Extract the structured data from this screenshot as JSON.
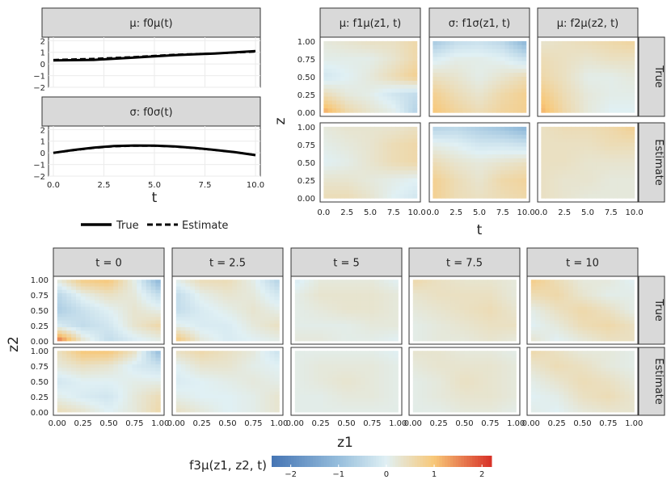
{
  "figure": {
    "colors": {
      "strip_fill": "#d9d9d9",
      "panel_border": "#333333",
      "grid": "#ebebeb",
      "low": "#4575b4",
      "mid": "#e0f0f4",
      "high": "#d73027"
    }
  },
  "chart_data": [
    {
      "type": "line",
      "id": "f0",
      "panels": [
        {
          "strip": "μ: f0μ(t)",
          "ylim": [
            -2,
            2.3
          ],
          "series": [
            {
              "name": "True",
              "x": [
                0,
                2,
                4,
                6,
                8,
                10
              ],
              "y": [
                0.3,
                0.35,
                0.55,
                0.75,
                0.9,
                1.1
              ]
            },
            {
              "name": "Estimate",
              "x": [
                0,
                2,
                4,
                6,
                8,
                10
              ],
              "y": [
                0.35,
                0.45,
                0.6,
                0.8,
                0.9,
                1.05
              ]
            }
          ]
        },
        {
          "strip": "σ: f0σ(t)",
          "ylim": [
            -2,
            2.3
          ],
          "series": [
            {
              "name": "True",
              "x": [
                0,
                1,
                2,
                3,
                4,
                5,
                6,
                7,
                8,
                9,
                10
              ],
              "y": [
                0.0,
                0.25,
                0.45,
                0.58,
                0.63,
                0.62,
                0.55,
                0.42,
                0.25,
                0.05,
                -0.2
              ]
            },
            {
              "name": "Estimate",
              "x": [
                0,
                1,
                2,
                3,
                4,
                5,
                6,
                7,
                8,
                9,
                10
              ],
              "y": [
                0.0,
                0.22,
                0.42,
                0.55,
                0.6,
                0.6,
                0.53,
                0.4,
                0.23,
                0.05,
                -0.18
              ]
            }
          ]
        }
      ],
      "xlabel": "t",
      "xticks": [
        "0.0",
        "2.5",
        "5.0",
        "7.5",
        "10.0"
      ],
      "yticks": [
        "2",
        "1",
        "0",
        "−1",
        "−2"
      ],
      "legend": {
        "placement": "bottom",
        "items": [
          "True",
          "Estimate"
        ]
      }
    },
    {
      "type": "heatmap",
      "id": "f1f2",
      "columns": [
        "μ: f1μ(z1, t)",
        "σ: f1σ(z1, t)",
        "μ: f2μ(z2, t)"
      ],
      "rows": [
        "True",
        "Estimate"
      ],
      "xlabel": "t",
      "ylabel": "z",
      "xticks": [
        "0.0",
        "2.5",
        "5.0",
        "7.5",
        "10.0"
      ],
      "yticks": [
        "1.00",
        "0.75",
        "0.50",
        "0.25",
        "0.00"
      ],
      "grids": [
        [
          [
            [
              0.2,
              0.3,
              0.4,
              0.4,
              0.6
            ],
            [
              0.1,
              0.1,
              0.1,
              0.3,
              0.6
            ],
            [
              -0.2,
              0,
              0.2,
              0.5,
              0.8
            ],
            [
              0.5,
              0.2,
              0.1,
              -0.2,
              -0.4
            ],
            [
              1.3,
              0.6,
              0.3,
              0.1,
              -0.6
            ]
          ],
          [
            [
              -0.8,
              -0.4,
              -0.3,
              -0.5,
              -1.2
            ],
            [
              -0.1,
              0.1,
              0.1,
              0,
              -0.3
            ],
            [
              0.4,
              0.3,
              0.1,
              0.3,
              0.5
            ],
            [
              0.8,
              0.5,
              0.3,
              0.6,
              0.8
            ],
            [
              1,
              0.7,
              0.5,
              0.7,
              0.8
            ]
          ],
          [
            [
              0.3,
              0.4,
              0.5,
              0.6,
              0.7
            ],
            [
              0.5,
              0.4,
              0.3,
              0.4,
              0.4
            ],
            [
              0.6,
              0.4,
              0.1,
              0.1,
              0.2
            ],
            [
              0.9,
              0.5,
              0.2,
              0.1,
              0.1
            ],
            [
              1.2,
              0.6,
              0.2,
              0,
              0
            ]
          ]
        ],
        [
          [
            [
              0.2,
              0.3,
              0.3,
              0.3,
              0.4
            ],
            [
              0.1,
              0.2,
              0.3,
              0.5,
              0.6
            ],
            [
              0,
              0.1,
              0.3,
              0.5,
              0.6
            ],
            [
              0.3,
              0.3,
              0.2,
              0.1,
              0
            ],
            [
              0.5,
              0.5,
              0.3,
              0,
              -0.2
            ]
          ],
          [
            [
              -0.6,
              -0.5,
              -0.7,
              -0.9,
              -1.2
            ],
            [
              0.1,
              0,
              -0.2,
              -0.2,
              -0.3
            ],
            [
              0.5,
              0.3,
              0.2,
              0.3,
              0.4
            ],
            [
              0.8,
              0.5,
              0.3,
              0.6,
              0.7
            ],
            [
              0.8,
              0.5,
              0.4,
              0.5,
              0.6
            ]
          ],
          [
            [
              0.4,
              0.5,
              0.5,
              0.6,
              0.8
            ],
            [
              0.4,
              0.4,
              0.4,
              0.5,
              0.5
            ],
            [
              0.4,
              0.4,
              0.3,
              0.3,
              0.3
            ],
            [
              0.4,
              0.3,
              0.3,
              0.2,
              0.2
            ],
            [
              0.4,
              0.3,
              0.2,
              0.2,
              0.2
            ]
          ]
        ]
      ]
    },
    {
      "type": "heatmap",
      "id": "f3",
      "columns": [
        "t = 0",
        "t = 2.5",
        "t = 5",
        "t = 7.5",
        "t = 10"
      ],
      "rows": [
        "True",
        "Estimate"
      ],
      "xlabel": "z1",
      "ylabel": "z2",
      "xticks": [
        "0.00",
        "0.25",
        "0.50",
        "0.75",
        "1.00"
      ],
      "yticks": [
        "1.00",
        "0.75",
        "0.50",
        "0.25",
        "0.00"
      ],
      "grids": [
        [
          [
            [
              0.2,
              0.9,
              1.0,
              0.1,
              -1.2
            ],
            [
              -0.5,
              0.1,
              0.4,
              0.2,
              -0.4
            ],
            [
              -0.7,
              -0.3,
              0,
              0.3,
              0.1
            ],
            [
              -0.1,
              -0.4,
              -0.2,
              0.3,
              0.6
            ],
            [
              1.8,
              0.3,
              -0.4,
              -0.1,
              0.1
            ]
          ],
          [
            [
              0.1,
              0.5,
              0.5,
              0.1,
              -0.6
            ],
            [
              -0.4,
              0.1,
              0.3,
              0.2,
              -0.2
            ],
            [
              -0.4,
              -0.1,
              0.1,
              0.3,
              0.1
            ],
            [
              0.1,
              -0.1,
              -0.1,
              0.2,
              0.4
            ],
            [
              1.0,
              0.2,
              -0.1,
              0,
              0.1
            ]
          ],
          [
            [
              -0.1,
              0.2,
              0.2,
              0.2,
              0
            ],
            [
              0.1,
              0.3,
              0.3,
              0.3,
              0.2
            ],
            [
              0.1,
              0.2,
              0.3,
              0.3,
              0.2
            ],
            [
              0.1,
              0.1,
              0.1,
              0.2,
              0.2
            ],
            [
              0.2,
              0.2,
              0.1,
              0.1,
              0
            ]
          ],
          [
            [
              0.6,
              0.4,
              0.3,
              0.3,
              0.2
            ],
            [
              0.3,
              0.4,
              0.4,
              0.4,
              0.2
            ],
            [
              0.2,
              0.3,
              0.4,
              0.5,
              0.3
            ],
            [
              0.1,
              0.2,
              0.3,
              0.4,
              0.4
            ],
            [
              0.1,
              0.2,
              0.2,
              0.3,
              0.2
            ]
          ],
          [
            [
              0.9,
              0.5,
              0.2,
              0.2,
              0
            ],
            [
              0.5,
              0.6,
              0.3,
              0.1,
              0.1
            ],
            [
              0.1,
              0.4,
              0.6,
              0.4,
              0.1
            ],
            [
              0,
              0.2,
              0.5,
              0.6,
              0.4
            ],
            [
              0.3,
              0,
              0.2,
              0.4,
              0.4
            ]
          ]
        ],
        [
          [
            [
              0.4,
              1.0,
              1.0,
              0.4,
              -1.1
            ],
            [
              0.2,
              0.4,
              0.3,
              -0.1,
              -0.3
            ],
            [
              -0.2,
              0,
              0,
              0.1,
              0.1
            ],
            [
              0.1,
              -0.1,
              -0.2,
              0.2,
              0.5
            ],
            [
              0.5,
              0.3,
              0,
              0.2,
              0.6
            ]
          ],
          [
            [
              0.4,
              0.6,
              0.4,
              0.2,
              -0.3
            ],
            [
              0,
              0.3,
              0.3,
              0.1,
              0
            ],
            [
              -0.1,
              0,
              0.1,
              0.2,
              0.1
            ],
            [
              0.1,
              0,
              0,
              0.1,
              0.3
            ],
            [
              0.4,
              0.2,
              0,
              0.1,
              0.3
            ]
          ],
          [
            [
              0.1,
              0.1,
              0.1,
              0.1,
              0
            ],
            [
              0.1,
              0.2,
              0.2,
              0.2,
              0.1
            ],
            [
              0.1,
              0.2,
              0.3,
              0.2,
              0.1
            ],
            [
              0.1,
              0.1,
              0.2,
              0.2,
              0.1
            ],
            [
              0.1,
              0.1,
              0.1,
              0.1,
              0.1
            ]
          ],
          [
            [
              0.3,
              0.3,
              0.2,
              0.2,
              0.1
            ],
            [
              0.2,
              0.3,
              0.3,
              0.3,
              0.2
            ],
            [
              0.1,
              0.2,
              0.4,
              0.3,
              0.2
            ],
            [
              0.1,
              0.2,
              0.3,
              0.3,
              0.2
            ],
            [
              0.1,
              0.1,
              0.2,
              0.2,
              0.1
            ]
          ],
          [
            [
              0.6,
              0.4,
              0.2,
              0.2,
              0.1
            ],
            [
              0.3,
              0.5,
              0.4,
              0.2,
              0.1
            ],
            [
              0.1,
              0.3,
              0.5,
              0.4,
              0.2
            ],
            [
              0,
              0.1,
              0.4,
              0.5,
              0.3
            ],
            [
              0.1,
              0,
              0.2,
              0.3,
              0.3
            ]
          ]
        ]
      ]
    },
    {
      "type": "colorbar",
      "id": "colorbar",
      "title": "f3μ(z1, z2, t)",
      "range": [
        -2.4,
        2.2
      ],
      "ticks": [
        "−2",
        "−1",
        "0",
        "1",
        "2"
      ],
      "tick_values": [
        -2,
        -1,
        0,
        1,
        2
      ]
    }
  ]
}
